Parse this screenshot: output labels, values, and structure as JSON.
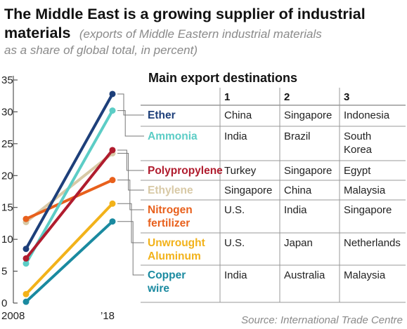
{
  "title": "The Middle East is a growing supplier of industrial materials",
  "title_line1": "The Middle East is a growing supplier of industrial",
  "title_line2": "materials",
  "subtitle_line1": "(exports of Middle Eastern industrial materials",
  "subtitle_line2": "as a share of global total, in percent)",
  "source": "Source: International Trade Centre",
  "table_title": "Main export destinations",
  "table_columns": [
    "1",
    "2",
    "3"
  ],
  "chart_data": {
    "type": "line",
    "title": "The Middle East is a growing supplier of industrial materials",
    "x": [
      "2008",
      "'18"
    ],
    "x_tick_labels": [
      "2008",
      "’18"
    ],
    "ylim": [
      0,
      35
    ],
    "y_ticks": [
      0,
      5,
      10,
      15,
      20,
      25,
      30,
      35
    ],
    "grid": false,
    "series": [
      {
        "name": "Ether",
        "color": "#1d3f7a",
        "values": [
          8.5,
          32.8
        ],
        "destinations": [
          "China",
          "Singapore",
          "Indonesia"
        ]
      },
      {
        "name": "Ammonia",
        "color": "#5ccdc6",
        "values": [
          6.2,
          30.2
        ],
        "destinations": [
          "India",
          "Brazil",
          "South Korea"
        ]
      },
      {
        "name": "Polypropylene",
        "color": "#b01c2e",
        "values": [
          7.0,
          24.0
        ],
        "destinations": [
          "Turkey",
          "Singapore",
          "Egypt"
        ]
      },
      {
        "name": "Ethylene",
        "color": "#d8c9a6",
        "values": [
          12.7,
          23.5
        ],
        "destinations": [
          "Singapore",
          "China",
          "Malaysia"
        ]
      },
      {
        "name": "Nitrogen fertilizer",
        "color": "#e8601c",
        "values": [
          13.2,
          19.3
        ],
        "destinations": [
          "U.S.",
          "India",
          "Singapore"
        ]
      },
      {
        "name": "Unwrought Aluminum",
        "color": "#f2b21a",
        "values": [
          1.4,
          15.6
        ],
        "destinations": [
          "U.S.",
          "Japan",
          "Netherlands"
        ]
      },
      {
        "name": "Copper wire",
        "color": "#1a8aa0",
        "values": [
          0.2,
          12.8
        ],
        "destinations": [
          "India",
          "Australia",
          "Malaysia"
        ]
      }
    ]
  }
}
